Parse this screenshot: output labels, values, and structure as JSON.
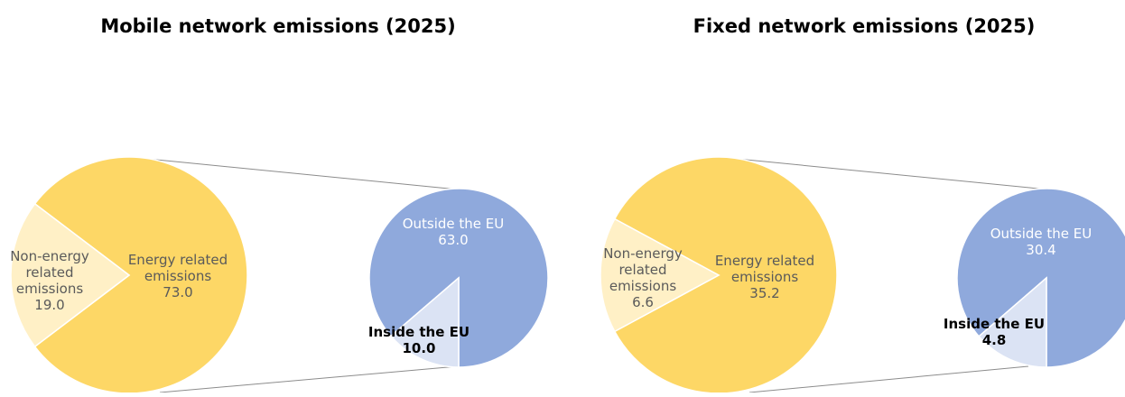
{
  "chart_data": [
    {
      "type": "pie",
      "title": "Mobile network emissions (2025)",
      "slices": [
        {
          "label": "Energy related emissions",
          "value": 73.0,
          "display": "73.0",
          "color": "#fdd766"
        },
        {
          "label": "Non-energy related emissions",
          "value": 19.0,
          "display": "19.0",
          "color": "#fff0c6"
        }
      ],
      "breakdown": {
        "of": "Energy related emissions",
        "slices": [
          {
            "label": "Outside the EU",
            "value": 63.0,
            "display": "63.0",
            "color": "#8fa9dc"
          },
          {
            "label": "Inside the EU",
            "value": 10.0,
            "display": "10.0",
            "color": "#dbe3f4"
          }
        ]
      }
    },
    {
      "type": "pie",
      "title": "Fixed network emissions (2025)",
      "slices": [
        {
          "label": "Energy related emissions",
          "value": 35.2,
          "display": "35.2",
          "color": "#fdd766"
        },
        {
          "label": "Non-energy related emissions",
          "value": 6.6,
          "display": "6.6",
          "color": "#fff0c6"
        }
      ],
      "breakdown": {
        "of": "Energy related emissions",
        "slices": [
          {
            "label": "Outside the EU",
            "value": 30.4,
            "display": "30.4",
            "color": "#8fa9dc"
          },
          {
            "label": "Inside the EU",
            "value": 4.8,
            "display": "4.8",
            "color": "#dbe3f4"
          }
        ]
      }
    }
  ]
}
